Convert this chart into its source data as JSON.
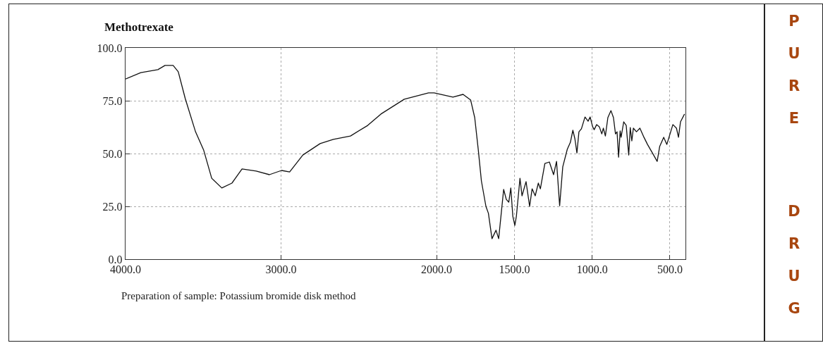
{
  "chart_data": {
    "type": "line",
    "title": "Methotrexate",
    "x": [
      4000,
      3902,
      3792,
      3746,
      3694,
      3661,
      3616,
      3550,
      3498,
      3446,
      3381,
      3316,
      3251,
      3160,
      3075,
      2997,
      2945,
      2860,
      2749,
      2664,
      2554,
      2443,
      2358,
      2208,
      2052,
      2016,
      1895,
      1830,
      1781,
      1755,
      1732,
      1712,
      1683,
      1667,
      1644,
      1618,
      1601,
      1569,
      1552,
      1536,
      1523,
      1510,
      1497,
      1487,
      1464,
      1451,
      1425,
      1402,
      1386,
      1366,
      1346,
      1333,
      1304,
      1275,
      1248,
      1229,
      1209,
      1189,
      1160,
      1140,
      1124,
      1111,
      1098,
      1085,
      1069,
      1046,
      1026,
      1013,
      997,
      987,
      971,
      954,
      938,
      928,
      915,
      899,
      879,
      863,
      850,
      840,
      830,
      820,
      814,
      797,
      781,
      765,
      755,
      745,
      735,
      715,
      693,
      667,
      644,
      605,
      582,
      566,
      540,
      520,
      481,
      458,
      445,
      432,
      406
    ],
    "series": [
      {
        "color": "#111111",
        "values": [
          85.3,
          88.3,
          89.7,
          91.7,
          91.7,
          88.7,
          76,
          60.3,
          51.7,
          38.3,
          33.7,
          36,
          42.7,
          41.7,
          40,
          42,
          41.3,
          49.3,
          54.7,
          56.7,
          58.3,
          63.3,
          68.7,
          75.7,
          78.7,
          78.7,
          76.7,
          78,
          75.3,
          67,
          51.7,
          37,
          25,
          21.7,
          9.7,
          13.7,
          9.7,
          33,
          28.3,
          27,
          33.7,
          20.3,
          16,
          20.4,
          38.3,
          30,
          36.7,
          25,
          33.3,
          30,
          36,
          33.3,
          45.3,
          46,
          40,
          46.3,
          25.3,
          43.7,
          52,
          55.3,
          61,
          57,
          50.3,
          60.3,
          61.7,
          67.3,
          65.3,
          67.3,
          62.7,
          61.3,
          63.7,
          62.7,
          59.3,
          62,
          58.3,
          67,
          70.3,
          67,
          59.3,
          60.3,
          48.3,
          60.7,
          57.7,
          65,
          63.3,
          49.3,
          62.3,
          56,
          62,
          60.3,
          62,
          57.7,
          54.3,
          49.3,
          46.3,
          53.3,
          57.7,
          54.3,
          63.7,
          62,
          57.7,
          65,
          68.7
        ]
      }
    ],
    "xlim": [
      4000,
      400
    ],
    "xticks": [
      {
        "value": 4000,
        "label": "4000.0"
      },
      {
        "value": 3000,
        "label": "3000.0"
      },
      {
        "value": 2000,
        "label": "2000.0"
      },
      {
        "value": 1500,
        "label": "1500.0"
      },
      {
        "value": 1000,
        "label": "1000.0"
      },
      {
        "value": 500,
        "label": "500.0"
      }
    ],
    "ylim": [
      0,
      100
    ],
    "yticks": [
      {
        "value": 0,
        "label": "0.0"
      },
      {
        "value": 25,
        "label": "25.0"
      },
      {
        "value": 50,
        "label": "50.0"
      },
      {
        "value": 75,
        "label": "75.0"
      },
      {
        "value": 100,
        "label": "100.0"
      }
    ],
    "grid": true,
    "marker": "none",
    "line_style": "solid",
    "annotations": [
      "Preparation of sample: Potassium bromide disk method",
      "PURE DRUG"
    ]
  }
}
